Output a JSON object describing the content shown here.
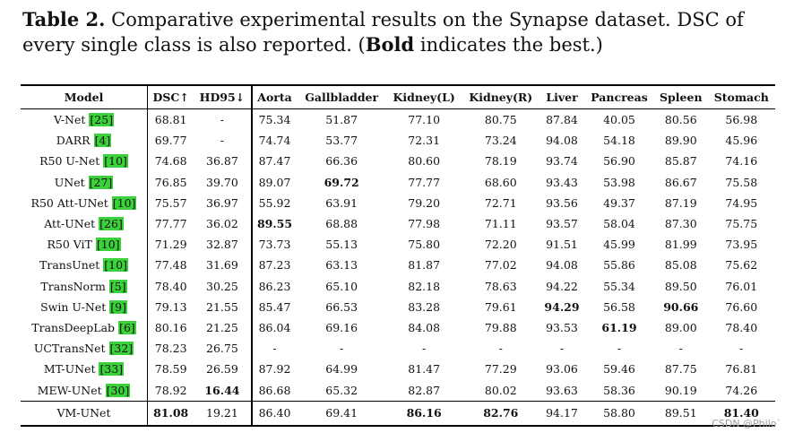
{
  "caption": {
    "label": "Table 2.",
    "text_1": " Comparative experimental results on the Synapse dataset. DSC of every single class is also reported. (",
    "bold_word": "Bold",
    "text_2": " indicates the best.)"
  },
  "table": {
    "headers": [
      "Model",
      "DSC↑",
      "HD95↓",
      "Aorta",
      "Gallbladder",
      "Kidney(L)",
      "Kidney(R)",
      "Liver",
      "Pancreas",
      "Spleen",
      "Stomach"
    ],
    "rows": [
      {
        "model": "V-Net",
        "ref": "25",
        "values": [
          "68.81",
          "-",
          "75.34",
          "51.87",
          "77.10",
          "80.75",
          "87.84",
          "40.05",
          "80.56",
          "56.98"
        ],
        "bold": []
      },
      {
        "model": "DARR",
        "ref": "4",
        "values": [
          "69.77",
          "-",
          "74.74",
          "53.77",
          "72.31",
          "73.24",
          "94.08",
          "54.18",
          "89.90",
          "45.96"
        ],
        "bold": []
      },
      {
        "model": "R50 U-Net",
        "ref": "10",
        "values": [
          "74.68",
          "36.87",
          "87.47",
          "66.36",
          "80.60",
          "78.19",
          "93.74",
          "56.90",
          "85.87",
          "74.16"
        ],
        "bold": []
      },
      {
        "model": "UNet",
        "ref": "27",
        "values": [
          "76.85",
          "39.70",
          "89.07",
          "69.72",
          "77.77",
          "68.60",
          "93.43",
          "53.98",
          "86.67",
          "75.58"
        ],
        "bold": [
          3
        ]
      },
      {
        "model": "R50 Att-UNet",
        "ref": "10",
        "values": [
          "75.57",
          "36.97",
          "55.92",
          "63.91",
          "79.20",
          "72.71",
          "93.56",
          "49.37",
          "87.19",
          "74.95"
        ],
        "bold": []
      },
      {
        "model": "Att-UNet",
        "ref": "26",
        "values": [
          "77.77",
          "36.02",
          "89.55",
          "68.88",
          "77.98",
          "71.11",
          "93.57",
          "58.04",
          "87.30",
          "75.75"
        ],
        "bold": [
          2
        ]
      },
      {
        "model": "R50 ViT",
        "ref": "10",
        "values": [
          "71.29",
          "32.87",
          "73.73",
          "55.13",
          "75.80",
          "72.20",
          "91.51",
          "45.99",
          "81.99",
          "73.95"
        ],
        "bold": []
      },
      {
        "model": "TransUnet",
        "ref": "10",
        "values": [
          "77.48",
          "31.69",
          "87.23",
          "63.13",
          "81.87",
          "77.02",
          "94.08",
          "55.86",
          "85.08",
          "75.62"
        ],
        "bold": []
      },
      {
        "model": "TransNorm",
        "ref": "5",
        "values": [
          "78.40",
          "30.25",
          "86.23",
          "65.10",
          "82.18",
          "78.63",
          "94.22",
          "55.34",
          "89.50",
          "76.01"
        ],
        "bold": []
      },
      {
        "model": "Swin U-Net",
        "ref": "9",
        "values": [
          "79.13",
          "21.55",
          "85.47",
          "66.53",
          "83.28",
          "79.61",
          "94.29",
          "56.58",
          "90.66",
          "76.60"
        ],
        "bold": [
          6,
          8
        ]
      },
      {
        "model": "TransDeepLab",
        "ref": "6",
        "values": [
          "80.16",
          "21.25",
          "86.04",
          "69.16",
          "84.08",
          "79.88",
          "93.53",
          "61.19",
          "89.00",
          "78.40"
        ],
        "bold": [
          7
        ]
      },
      {
        "model": "UCTransNet",
        "ref": "32",
        "values": [
          "78.23",
          "26.75",
          "-",
          "-",
          "-",
          "-",
          "-",
          "-",
          "-",
          "-"
        ],
        "bold": []
      },
      {
        "model": "MT-UNet",
        "ref": "33",
        "values": [
          "78.59",
          "26.59",
          "87.92",
          "64.99",
          "81.47",
          "77.29",
          "93.06",
          "59.46",
          "87.75",
          "76.81"
        ],
        "bold": []
      },
      {
        "model": "MEW-UNet",
        "ref": "30",
        "values": [
          "78.92",
          "16.44",
          "86.68",
          "65.32",
          "82.87",
          "80.02",
          "93.63",
          "58.36",
          "90.19",
          "74.26"
        ],
        "bold": [
          1
        ]
      }
    ],
    "last_row": {
      "model": "VM-UNet",
      "values": [
        "81.08",
        "19.21",
        "86.40",
        "69.41",
        "86.16",
        "82.76",
        "94.17",
        "58.80",
        "89.51",
        "81.40"
      ],
      "bold": [
        0,
        4,
        5,
        9
      ]
    }
  },
  "watermark": "CSDN @Philo`"
}
